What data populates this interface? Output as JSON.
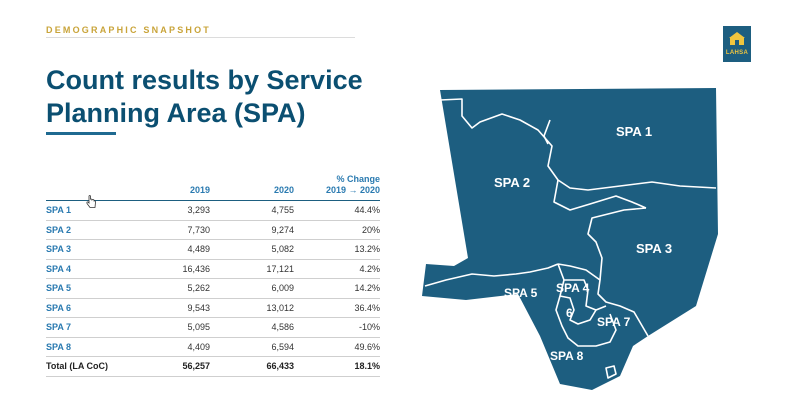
{
  "header": {
    "eyebrow": "DEMOGRAPHIC SNAPSHOT",
    "title": "Count results by Service Planning Area (SPA)",
    "logo_text": "LAHSA"
  },
  "table": {
    "columns": [
      "",
      "2019",
      "2020",
      "% Change\n2019 → 2020"
    ],
    "rows": [
      {
        "label": "SPA 1",
        "y2019": "3,293",
        "y2020": "4,755",
        "change": "44.4%"
      },
      {
        "label": "SPA 2",
        "y2019": "7,730",
        "y2020": "9,274",
        "change": "20%"
      },
      {
        "label": "SPA 3",
        "y2019": "4,489",
        "y2020": "5,082",
        "change": "13.2%"
      },
      {
        "label": "SPA 4",
        "y2019": "16,436",
        "y2020": "17,121",
        "change": "4.2%"
      },
      {
        "label": "SPA 5",
        "y2019": "5,262",
        "y2020": "6,009",
        "change": "14.2%"
      },
      {
        "label": "SPA 6",
        "y2019": "9,543",
        "y2020": "13,012",
        "change": "36.4%"
      },
      {
        "label": "SPA 7",
        "y2019": "5,095",
        "y2020": "4,586",
        "change": "-10%"
      },
      {
        "label": "SPA 8",
        "y2019": "4,409",
        "y2020": "6,594",
        "change": "49.6%"
      }
    ],
    "total": {
      "label": "Total (LA CoC)",
      "y2019": "56,257",
      "y2020": "66,433",
      "change": "18.1%"
    }
  },
  "map": {
    "fill_color": "#1d5e80",
    "border_color": "#ffffff",
    "labels": [
      "SPA 1",
      "SPA 2",
      "SPA 3",
      "SPA 4",
      "SPA 5",
      "6",
      "SPA 7",
      "SPA 8"
    ]
  },
  "colors": {
    "title": "#0b4f71",
    "eyebrow": "#c9a43a",
    "row_label": "#2a7ab0"
  }
}
